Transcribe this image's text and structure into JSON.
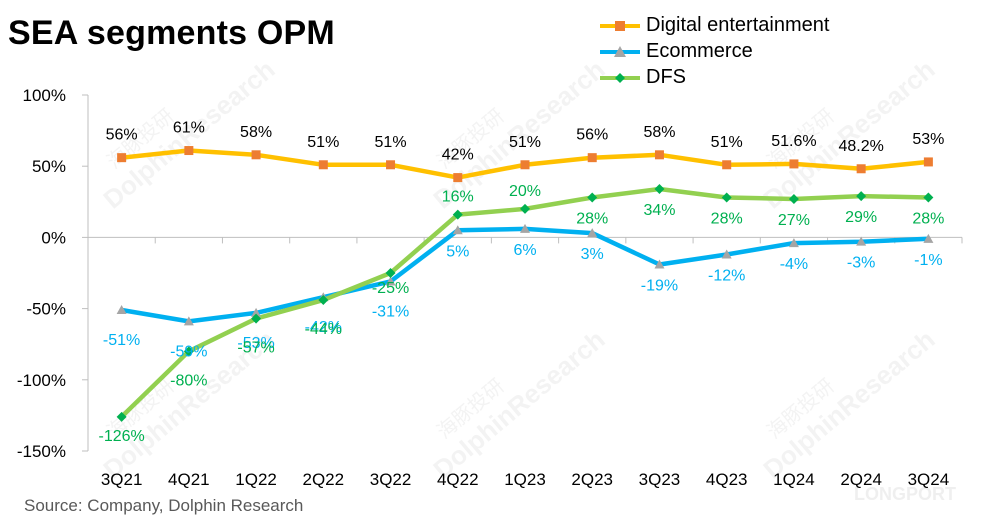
{
  "title": "SEA segments OPM",
  "source": "Source: Company, Dolphin Research",
  "chart_data": {
    "type": "line",
    "categories": [
      "3Q21",
      "4Q21",
      "1Q22",
      "2Q22",
      "3Q22",
      "4Q22",
      "1Q23",
      "2Q23",
      "3Q23",
      "4Q23",
      "1Q24",
      "2Q24",
      "3Q24"
    ],
    "ylim": [
      -150,
      100
    ],
    "yticks": [
      100,
      50,
      0,
      -50,
      -100,
      -150
    ],
    "ytick_labels": [
      "100%",
      "50%",
      "0%",
      "-50%",
      "-100%",
      "-150%"
    ],
    "legend_position": "top-right",
    "grid": false,
    "series": [
      {
        "name": "Digital entertainment",
        "color": "#FFC000",
        "marker": "square",
        "marker_color": "#ED7D31",
        "values": [
          56,
          61,
          58,
          51,
          51,
          42,
          51,
          56,
          58,
          51,
          51.6,
          48.2,
          53
        ],
        "labels": [
          "56%",
          "61%",
          "58%",
          "51%",
          "51%",
          "42%",
          "51%",
          "56%",
          "58%",
          "51%",
          "51.6%",
          "48.2%",
          "53%"
        ],
        "label_color": "#000000"
      },
      {
        "name": "Ecommerce",
        "color": "#00B0F0",
        "marker": "triangle",
        "marker_color": "#A5A5A5",
        "values": [
          -51,
          -59,
          -53,
          -42,
          -31,
          5,
          6,
          3,
          -19,
          -12,
          -4,
          -3,
          -1
        ],
        "labels": [
          "-51%",
          "-59%",
          "-53%",
          "-42%",
          "-31%",
          "5%",
          "6%",
          "3%",
          "-19%",
          "-12%",
          "-4%",
          "-3%",
          "-1%"
        ],
        "label_color": "#00B0F0"
      },
      {
        "name": "DFS",
        "color": "#92D050",
        "marker": "diamond",
        "marker_color": "#00B050",
        "values": [
          -126,
          -80,
          -57,
          -44,
          -25,
          16,
          20,
          28,
          34,
          28,
          27,
          29,
          28
        ],
        "labels": [
          "-126%",
          "-80%",
          "-57%",
          "-44%",
          "-25%",
          "16%",
          "20%",
          "28%",
          "34%",
          "28%",
          "27%",
          "29%",
          "28%"
        ],
        "label_color": "#00B050"
      }
    ]
  },
  "watermark": {
    "text_cn": "海豚投研",
    "text_en": "DolphinResearch",
    "brand": "LONGPORT"
  }
}
